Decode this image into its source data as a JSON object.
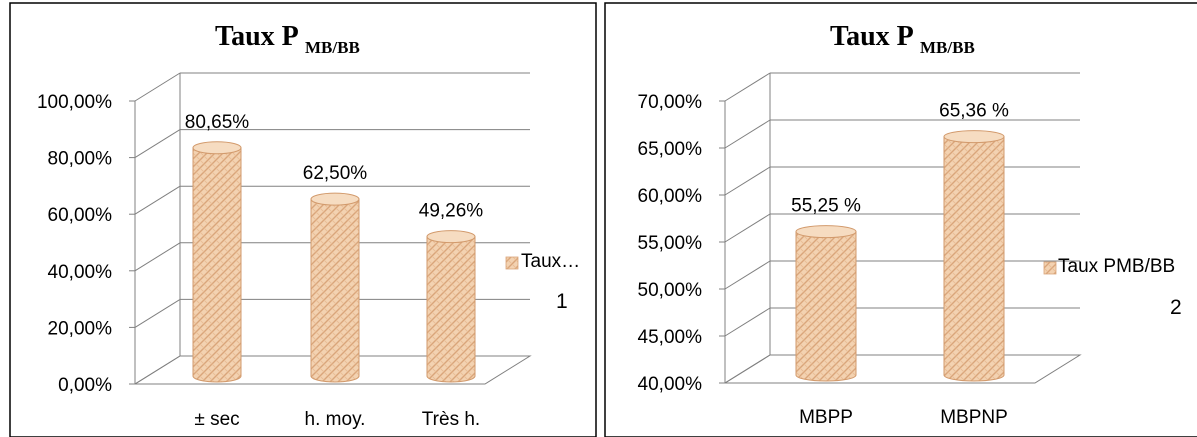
{
  "charts": [
    {
      "title_main": "Taux P",
      "title_sub": "MB/BB",
      "legend_label": "Taux…",
      "figure_number": "1",
      "colors": {
        "bar": "#f0c7a0",
        "bar_pattern": "#d9a57a",
        "grid": "#808080"
      }
    },
    {
      "title_main": "Taux P",
      "title_sub": "MB/BB",
      "legend_label": "Taux PMB/BB",
      "figure_number": "2",
      "colors": {
        "bar": "#f0c7a0",
        "bar_pattern": "#d9a57a",
        "grid": "#808080"
      }
    }
  ],
  "chart_data": [
    {
      "type": "bar",
      "title": "Taux PMB/BB",
      "categories": [
        "± sec",
        "h. moy.",
        "Très h."
      ],
      "series": [
        {
          "name": "Taux…",
          "values": [
            80.65,
            62.5,
            49.26
          ]
        }
      ],
      "data_labels": [
        "80,65%",
        "62,50%",
        "49,26%"
      ],
      "yticks": [
        "0,00%",
        "20,00%",
        "40,00%",
        "60,00%",
        "80,00%",
        "100,00%"
      ],
      "ylim": [
        0,
        100
      ],
      "grid": true,
      "legend": "right"
    },
    {
      "type": "bar",
      "title": "Taux PMB/BB",
      "categories": [
        "MBPP",
        "MBPNP"
      ],
      "series": [
        {
          "name": "Taux PMB/BB",
          "values": [
            55.25,
            65.36
          ]
        }
      ],
      "data_labels": [
        "55,25 %",
        "65,36 %"
      ],
      "yticks": [
        "40,00%",
        "45,00%",
        "50,00%",
        "55,00%",
        "60,00%",
        "65,00%",
        "70,00%"
      ],
      "ylim": [
        40,
        70
      ],
      "grid": true,
      "legend": "right"
    }
  ]
}
